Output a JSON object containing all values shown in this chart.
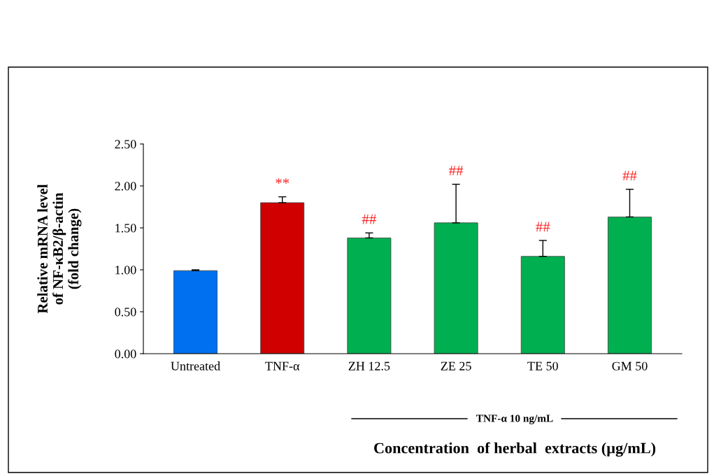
{
  "chart_data": {
    "type": "bar",
    "ylabel": "Relative mRNA level\nof NF-κB2/β-actin\n(fold change)",
    "xlabel": "Concentration  of herbal  extracts (µg/mL)",
    "categories": [
      "Untreated",
      "TNF-α",
      "ZH 12.5",
      "ZE 25",
      "TE 50",
      "GM 50"
    ],
    "values": [
      0.99,
      1.8,
      1.38,
      1.56,
      1.16,
      1.63
    ],
    "colors": [
      "#0070f0",
      "#d00000",
      "#00b050",
      "#00b050",
      "#00b050",
      "#00b050"
    ],
    "errors": [
      [
        0.99,
        1.0
      ],
      [
        1.8,
        1.87
      ],
      [
        1.38,
        1.44
      ],
      [
        1.56,
        2.02
      ],
      [
        1.16,
        1.35
      ],
      [
        1.63,
        1.96
      ]
    ],
    "ylim": [
      0,
      2.5
    ],
    "yticks": [
      {
        "value": 0,
        "label": "0.00"
      },
      {
        "value": 0.5,
        "label": "0.50"
      },
      {
        "value": 1.0,
        "label": "1.00"
      },
      {
        "value": 1.5,
        "label": "1.50"
      },
      {
        "value": 2.0,
        "label": "2.00"
      },
      {
        "value": 2.5,
        "label": "2.50"
      }
    ],
    "grid": false,
    "annotations": [
      {
        "text": "**",
        "x": "TNF-α",
        "y": 1.87
      },
      {
        "text": "##",
        "x": "ZH 12.5",
        "y": 1.44
      },
      {
        "text": "##",
        "x": "ZE 25",
        "y": 2.02
      },
      {
        "text": "##",
        "x": "TE 50",
        "y": 1.35
      },
      {
        "text": "##",
        "x": "GM 50",
        "y": 1.96
      },
      "TNF-α 10 ng/mL"
    ]
  }
}
